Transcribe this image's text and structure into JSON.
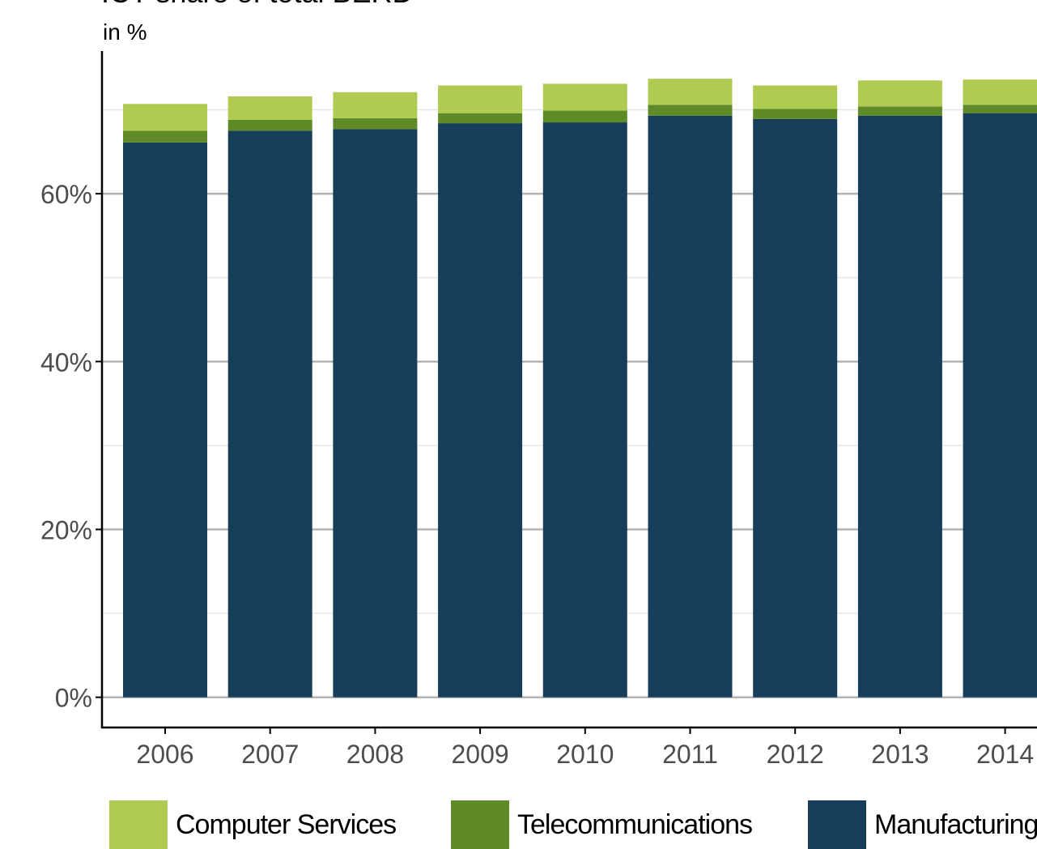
{
  "title": "ICT share of total BERD",
  "subtitle": "in %",
  "colors": {
    "Computer Services": "#b0cb52",
    "Telecommunications": "#5e8a27",
    "Manufacturing": "#163e5a",
    "grid": "#b3b3b3",
    "axis": "#000000"
  },
  "chart_data": {
    "type": "bar",
    "stacked": true,
    "categories": [
      "2006",
      "2007",
      "2008",
      "2009",
      "2010",
      "2011",
      "2012",
      "2013",
      "2014"
    ],
    "series": [
      {
        "name": "Manufacturing",
        "values": [
          66.1,
          67.5,
          67.7,
          68.4,
          68.5,
          69.3,
          68.9,
          69.3,
          69.6
        ]
      },
      {
        "name": "Telecommunications",
        "values": [
          1.4,
          1.3,
          1.3,
          1.2,
          1.4,
          1.3,
          1.2,
          1.1,
          1.0
        ]
      },
      {
        "name": "Computer Services",
        "values": [
          3.2,
          2.8,
          3.1,
          3.3,
          3.2,
          3.1,
          2.8,
          3.1,
          3.0
        ]
      }
    ],
    "ylim": [
      -3.6,
      77
    ],
    "yticks": [
      0,
      20,
      40,
      60
    ],
    "ytick_labels": [
      "0%",
      "20%",
      "40%",
      "60%"
    ],
    "grid": true,
    "legend_position": "bottom"
  },
  "legend": [
    {
      "label": "Computer Services"
    },
    {
      "label": "Telecommunications"
    },
    {
      "label": "Manufacturing"
    }
  ]
}
